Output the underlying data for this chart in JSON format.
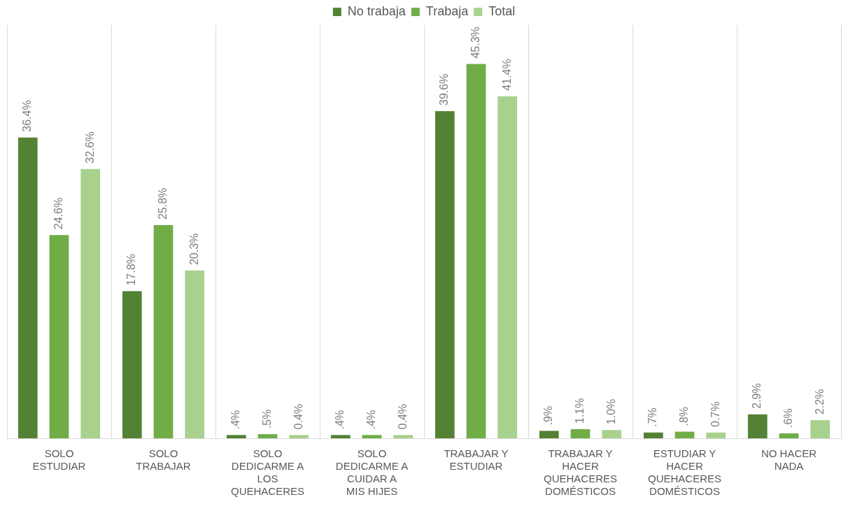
{
  "chart_data": {
    "type": "bar",
    "categories": [
      "SOLO ESTUDIAR",
      "SOLO TRABAJAR",
      "SOLO DEDICARME A LOS QUEHACERES",
      "SOLO DEDICARME A CUIDAR A MIS HIJES",
      "TRABAJAR Y ESTUDIAR",
      "TRABAJAR Y HACER QUEHACERES DOMÉSTICOS",
      "ESTUDIAR Y HACER QUEHACERES DOMÉSTICOS",
      "NO HACER NADA"
    ],
    "series": [
      {
        "name": "No trabaja",
        "color": "#548235",
        "values": [
          36.4,
          17.8,
          0.4,
          0.4,
          39.6,
          0.9,
          0.7,
          2.9
        ],
        "value_labels": [
          "36.4%",
          "17.8%",
          ".4%",
          ".4%",
          "39.6%",
          ".9%",
          ".7%",
          "2.9%"
        ]
      },
      {
        "name": "Trabaja",
        "color": "#70ad47",
        "values": [
          24.6,
          25.8,
          0.5,
          0.4,
          45.3,
          1.1,
          0.8,
          0.6
        ],
        "value_labels": [
          "24.6%",
          "25.8%",
          ".5%",
          ".4%",
          "45.3%",
          "1.1%",
          ".8%",
          ".6%"
        ]
      },
      {
        "name": "Total",
        "color": "#a9d18e",
        "values": [
          32.6,
          20.3,
          0.4,
          0.4,
          41.4,
          1.0,
          0.7,
          2.2
        ],
        "value_labels": [
          "32.6%",
          "20.3%",
          "0.4%",
          "0.4%",
          "41.4%",
          "1.0%",
          "0.7%",
          "2.2%"
        ]
      }
    ],
    "legend": "top",
    "grid": "x",
    "tick_labels": "x"
  }
}
